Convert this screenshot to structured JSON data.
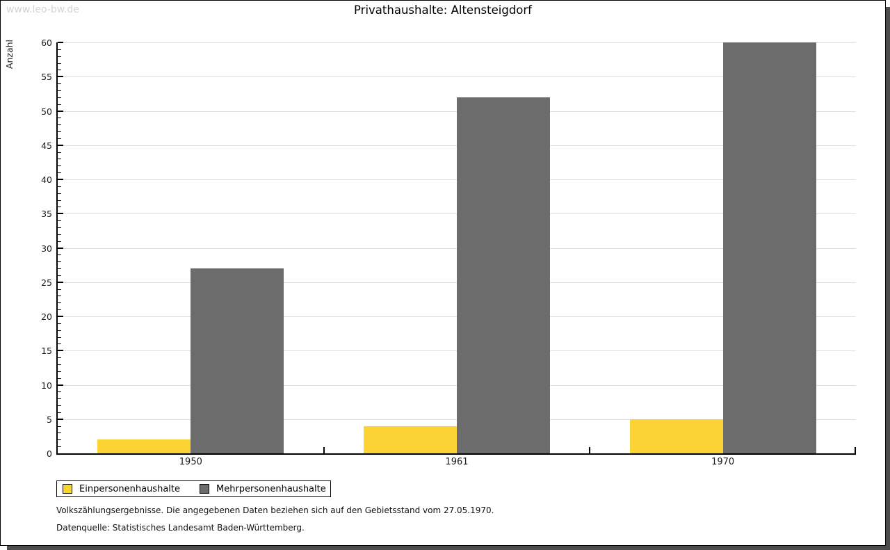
{
  "watermark": "www.leo-bw.de",
  "title": "Privathaushalte: Altensteigdorf",
  "chart_data": {
    "type": "bar",
    "title": "Privathaushalte: Altensteigdorf",
    "categories": [
      "1950",
      "1961",
      "1970"
    ],
    "series": [
      {
        "name": "Einpersonenhaushalte",
        "color": "#FBD335",
        "values": [
          2,
          4,
          5
        ]
      },
      {
        "name": "Mehrpersonenhaushalte",
        "color": "#6C6C6C",
        "values": [
          27,
          52,
          60
        ]
      }
    ],
    "xlabel": "",
    "ylabel": "Anzahl",
    "ylim": [
      0,
      60
    ],
    "yticks": [
      0,
      5,
      10,
      15,
      20,
      25,
      30,
      35,
      40,
      45,
      50,
      55,
      60
    ],
    "minor_tick_step": 1,
    "grid": true,
    "gridline_color": "#dedede",
    "legend_position": "bottom-left"
  },
  "footer": {
    "line1": "Volkszählungsergebnisse. Die angegebenen Daten beziehen sich auf den Gebietsstand vom 27.05.1970.",
    "line2": "Datenquelle: Statistisches Landesamt Baden-Württemberg."
  }
}
